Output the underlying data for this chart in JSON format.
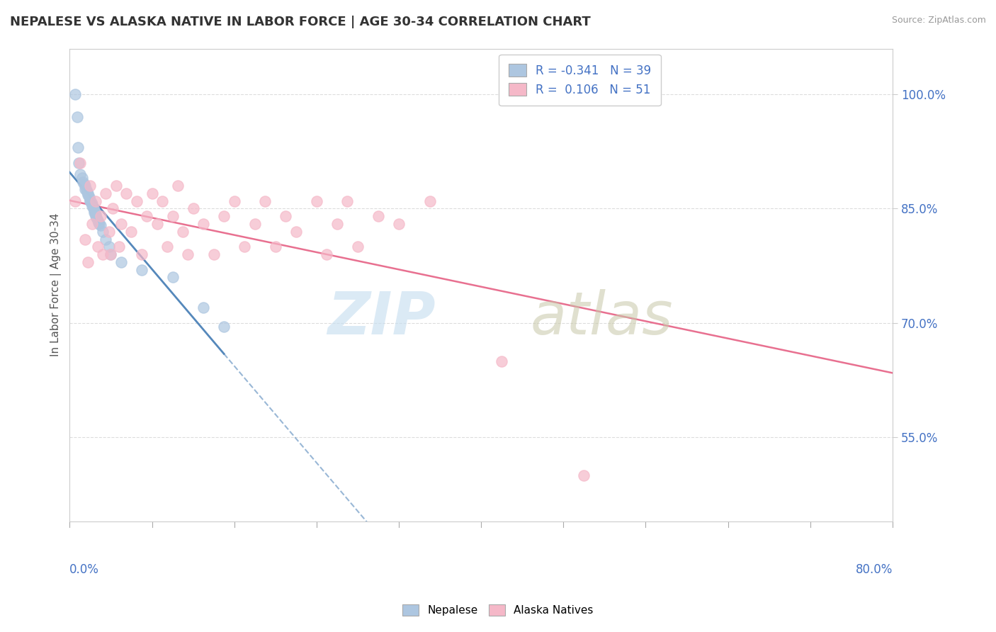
{
  "title": "NEPALESE VS ALASKA NATIVE IN LABOR FORCE | AGE 30-34 CORRELATION CHART",
  "source": "Source: ZipAtlas.com",
  "ylabel": "In Labor Force | Age 30-34",
  "right_yticks": [
    "100.0%",
    "85.0%",
    "70.0%",
    "55.0%"
  ],
  "right_ytick_vals": [
    1.0,
    0.85,
    0.7,
    0.55
  ],
  "xmin": 0.0,
  "xmax": 0.8,
  "ymin": 0.44,
  "ymax": 1.06,
  "R_nepalese": -0.341,
  "N_nepalese": 39,
  "R_alaska": 0.106,
  "N_alaska": 51,
  "color_nepalese": "#adc6e0",
  "color_alaska": "#f5b8c8",
  "trend_nepalese_solid": "#5588bb",
  "trend_alaska": "#e87090",
  "grid_color": "#dddddd",
  "nepalese_x": [
    0.005,
    0.007,
    0.008,
    0.009,
    0.01,
    0.012,
    0.013,
    0.014,
    0.015,
    0.015,
    0.016,
    0.017,
    0.018,
    0.018,
    0.019,
    0.02,
    0.02,
    0.021,
    0.022,
    0.022,
    0.023,
    0.024,
    0.024,
    0.025,
    0.025,
    0.026,
    0.027,
    0.028,
    0.029,
    0.03,
    0.032,
    0.035,
    0.038,
    0.04,
    0.05,
    0.07,
    0.1,
    0.13,
    0.15
  ],
  "nepalese_y": [
    1.0,
    0.97,
    0.93,
    0.91,
    0.895,
    0.89,
    0.885,
    0.882,
    0.88,
    0.876,
    0.875,
    0.872,
    0.87,
    0.868,
    0.865,
    0.862,
    0.86,
    0.858,
    0.856,
    0.853,
    0.85,
    0.848,
    0.845,
    0.843,
    0.84,
    0.838,
    0.835,
    0.832,
    0.83,
    0.828,
    0.82,
    0.81,
    0.8,
    0.79,
    0.78,
    0.77,
    0.76,
    0.72,
    0.695
  ],
  "alaska_x": [
    0.005,
    0.01,
    0.015,
    0.018,
    0.02,
    0.022,
    0.025,
    0.027,
    0.03,
    0.032,
    0.035,
    0.038,
    0.04,
    0.042,
    0.045,
    0.048,
    0.05,
    0.055,
    0.06,
    0.065,
    0.07,
    0.075,
    0.08,
    0.085,
    0.09,
    0.095,
    0.1,
    0.105,
    0.11,
    0.115,
    0.12,
    0.13,
    0.14,
    0.15,
    0.16,
    0.17,
    0.18,
    0.19,
    0.2,
    0.21,
    0.22,
    0.24,
    0.25,
    0.26,
    0.27,
    0.28,
    0.3,
    0.32,
    0.35,
    0.42,
    0.5
  ],
  "alaska_y": [
    0.86,
    0.91,
    0.81,
    0.78,
    0.88,
    0.83,
    0.86,
    0.8,
    0.84,
    0.79,
    0.87,
    0.82,
    0.79,
    0.85,
    0.88,
    0.8,
    0.83,
    0.87,
    0.82,
    0.86,
    0.79,
    0.84,
    0.87,
    0.83,
    0.86,
    0.8,
    0.84,
    0.88,
    0.82,
    0.79,
    0.85,
    0.83,
    0.79,
    0.84,
    0.86,
    0.8,
    0.83,
    0.86,
    0.8,
    0.84,
    0.82,
    0.86,
    0.79,
    0.83,
    0.86,
    0.8,
    0.84,
    0.83,
    0.86,
    0.65,
    0.5
  ]
}
